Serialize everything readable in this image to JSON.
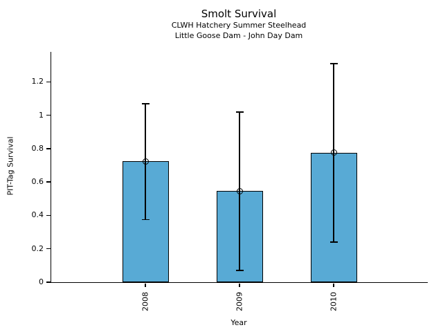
{
  "chart_data": {
    "type": "bar",
    "title": "Smolt Survival",
    "subtitle_line1": "CLWH Hatchery Summer Steelhead",
    "subtitle_line2": "Little Goose Dam - John Day Dam",
    "xlabel": "Year",
    "ylabel": "PIT-Tag Survival",
    "categories": [
      "2008",
      "2009",
      "2010"
    ],
    "series": [
      {
        "name": "PIT-Tag Survival",
        "values": [
          0.725,
          0.545,
          0.775
        ],
        "error_low": [
          0.375,
          0.07,
          0.24
        ],
        "error_high": [
          1.07,
          1.02,
          1.31
        ]
      }
    ],
    "yticks": [
      0,
      0.2,
      0.4,
      0.6,
      0.8,
      1,
      1.2
    ],
    "ytick_labels": [
      "0",
      "0.2",
      "0.4",
      "0.6",
      "0.8",
      "1",
      "1.2"
    ],
    "ylim": [
      0,
      1.38
    ],
    "grid": false,
    "legend": false,
    "bar_color": "#58AAD5",
    "bar_edge_color": "#000000",
    "error_bar_color": "#000000",
    "marker": "open-circle"
  }
}
